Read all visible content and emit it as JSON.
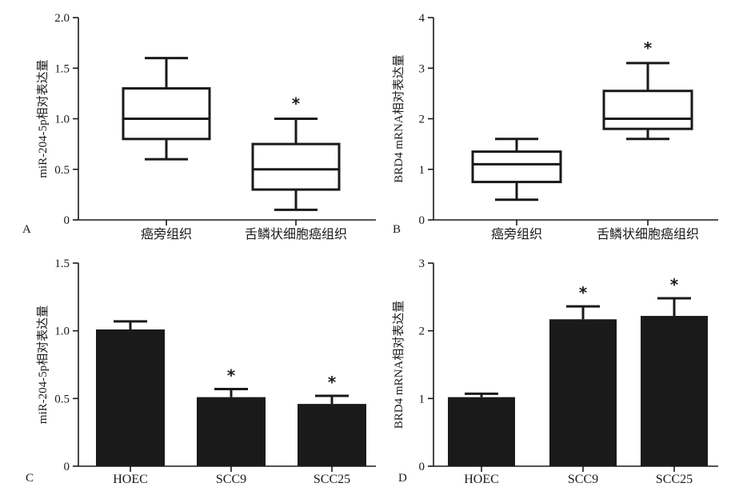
{
  "chart_data": [
    {
      "panel": "A",
      "type": "box",
      "ylabel": "miR-204-5p相对表达量",
      "ylim": [
        0,
        2.0
      ],
      "yticks": [
        "0",
        "0.5",
        "1.0",
        "1.5",
        "2.0"
      ],
      "categories": [
        "癌旁组织",
        "舌鳞状细胞癌组织"
      ],
      "boxes": [
        {
          "min": 0.6,
          "q1": 0.8,
          "median": 1.0,
          "q3": 1.3,
          "max": 1.6,
          "mark": ""
        },
        {
          "min": 0.1,
          "q1": 0.3,
          "median": 0.5,
          "q3": 0.75,
          "max": 1.0,
          "mark": "*"
        }
      ]
    },
    {
      "panel": "B",
      "type": "box",
      "ylabel": "BRD4 mRNA相对表达量",
      "ylim": [
        0,
        4
      ],
      "yticks": [
        "0",
        "1",
        "2",
        "3",
        "4"
      ],
      "categories": [
        "癌旁组织",
        "舌鳞状细胞癌组织"
      ],
      "boxes": [
        {
          "min": 0.4,
          "q1": 0.75,
          "median": 1.1,
          "q3": 1.35,
          "max": 1.6,
          "mark": ""
        },
        {
          "min": 1.6,
          "q1": 1.8,
          "median": 2.0,
          "q3": 2.55,
          "max": 3.1,
          "mark": "*"
        }
      ]
    },
    {
      "panel": "C",
      "type": "bar",
      "ylabel": "miR-204-5p相对表达量",
      "ylim": [
        0,
        1.5
      ],
      "yticks": [
        "0",
        "0.5",
        "1.0",
        "1.5"
      ],
      "categories": [
        "HOEC",
        "SCC9",
        "SCC25"
      ],
      "values": [
        1.01,
        0.51,
        0.46
      ],
      "errors": [
        0.06,
        0.06,
        0.06
      ],
      "marks": [
        "",
        "*",
        "*"
      ]
    },
    {
      "panel": "D",
      "type": "bar",
      "ylabel": "BRD4 mRNA相对表达量",
      "ylim": [
        0,
        3
      ],
      "yticks": [
        "0",
        "1",
        "2",
        "3"
      ],
      "categories": [
        "HOEC",
        "SCC9",
        "SCC25"
      ],
      "values": [
        1.02,
        2.17,
        2.22
      ],
      "errors": [
        0.05,
        0.19,
        0.26
      ],
      "marks": [
        "",
        "*",
        "*"
      ]
    }
  ]
}
